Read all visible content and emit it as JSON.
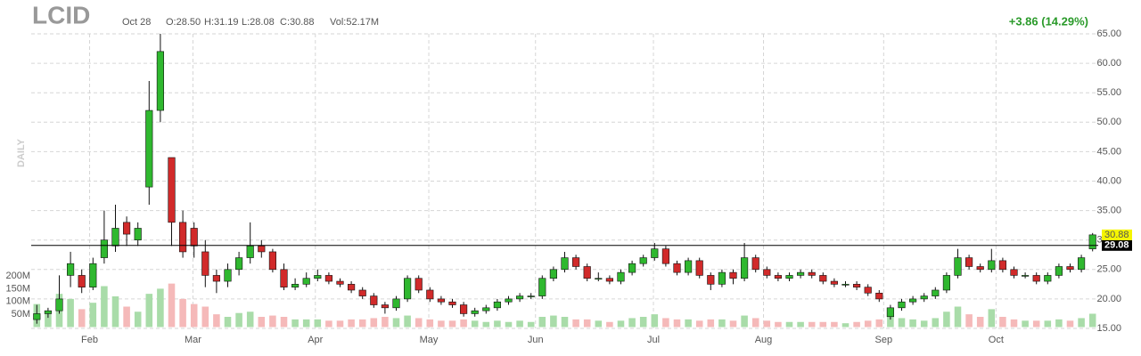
{
  "chart_data": {
    "type": "candlestick",
    "header": {
      "symbol": "LCID",
      "date": "Oct 28",
      "open": "O:28.50",
      "high": "H:31.19",
      "low": "L:28.08",
      "close": "C:30.88",
      "volume": "Vol:52.17M",
      "change": "+3.86 (14.29%)",
      "period": "DAILY"
    },
    "up_color": "#2fb82f",
    "down_color": "#d12a2a",
    "up_volume_color": "#a9dca9",
    "down_volume_color": "#f5b9b9",
    "grid": true,
    "xlim": [
      -0.5,
      94.5
    ],
    "xticks": [
      {
        "value": 4.7,
        "label": "Feb"
      },
      {
        "value": 13.9,
        "label": "Mar"
      },
      {
        "value": 24.8,
        "label": "Apr"
      },
      {
        "value": 34.9,
        "label": "May"
      },
      {
        "value": 44.4,
        "label": "Jun"
      },
      {
        "value": 54.9,
        "label": "Jul"
      },
      {
        "value": 64.7,
        "label": "Aug"
      },
      {
        "value": 75.4,
        "label": "Sep"
      },
      {
        "value": 85.4,
        "label": "Oct"
      }
    ],
    "ylim": [
      15,
      65
    ],
    "yticks": [
      {
        "value": 65,
        "label": "65.00"
      },
      {
        "value": 60,
        "label": "60.00"
      },
      {
        "value": 55,
        "label": "55.00"
      },
      {
        "value": 50,
        "label": "50.00"
      },
      {
        "value": 45,
        "label": "45.00"
      },
      {
        "value": 40,
        "label": "40.00"
      },
      {
        "value": 35,
        "label": "35.00"
      },
      {
        "value": 30,
        "label": "30.00"
      },
      {
        "value": 25,
        "label": "25.00"
      },
      {
        "value": 20,
        "label": "20.00"
      },
      {
        "value": 15,
        "label": "15.00"
      }
    ],
    "volume_lim": [
      0,
      200
    ],
    "volume_ticks": [
      {
        "value": 200,
        "label": "200M"
      },
      {
        "value": 150,
        "label": "150M"
      },
      {
        "value": 100,
        "label": "100M"
      },
      {
        "value": 50,
        "label": "50M"
      }
    ],
    "reference_line": {
      "value": 29.08,
      "label": "29.08"
    },
    "last_price": {
      "value": 30.88,
      "label": "30.88"
    },
    "open": [
      16.5,
      17.5,
      18,
      24,
      24,
      22,
      27,
      29,
      33,
      30,
      39,
      52,
      44,
      33,
      32,
      28,
      24,
      23,
      25,
      27,
      29,
      28,
      25,
      22,
      22.5,
      23.5,
      24,
      23,
      22.5,
      21.5,
      20.5,
      19,
      18.5,
      20,
      23.5,
      21.5,
      20,
      19.5,
      19,
      17.5,
      18,
      18.5,
      19.5,
      20,
      20.5,
      20.5,
      23.5,
      25,
      27,
      25.5,
      23.5,
      23.5,
      23,
      24.5,
      26,
      27,
      28.5,
      26,
      24.5,
      26.5,
      24,
      22.5,
      24.5,
      23.5,
      27,
      25,
      24,
      23.5,
      24,
      24.5,
      24,
      23,
      22.5,
      22.5,
      22,
      21,
      17,
      18.5,
      19.5,
      20,
      20.5,
      21.5,
      24,
      27,
      25.5,
      25,
      26.5,
      25,
      24,
      24,
      23,
      24,
      25.5,
      25,
      28.5
    ],
    "high": [
      19,
      18.5,
      24,
      28,
      25,
      27,
      35,
      36,
      34,
      33,
      57,
      65,
      44,
      35,
      33,
      30,
      25,
      26,
      28,
      33,
      30,
      28.5,
      26,
      23.5,
      24.5,
      25,
      24.5,
      23.5,
      23,
      22,
      21,
      19.5,
      20.5,
      24,
      24,
      22,
      20.5,
      20,
      19.5,
      18.5,
      19,
      20,
      20.5,
      21,
      21,
      24,
      25.5,
      28,
      27.5,
      26,
      24.5,
      24,
      25,
      26.5,
      27.5,
      29.5,
      29,
      26.5,
      27,
      27,
      24.5,
      25,
      25,
      29.5,
      27.5,
      25.5,
      24.5,
      24.5,
      25,
      25,
      24.5,
      23.5,
      23,
      23,
      22.5,
      21.5,
      19,
      20,
      20.5,
      21,
      22,
      24.5,
      28.5,
      27.5,
      26,
      28.5,
      27,
      25.5,
      24.5,
      24.5,
      24.5,
      26,
      26,
      27.5,
      31.19
    ],
    "low": [
      15.8,
      16.8,
      17.5,
      22,
      21,
      21.5,
      26,
      28,
      29,
      29,
      36,
      50,
      29,
      27,
      27,
      22,
      21,
      22,
      24,
      26,
      27,
      24.5,
      21.5,
      21.5,
      22,
      23,
      22.5,
      22,
      21,
      20,
      18.5,
      17.5,
      18,
      19.5,
      21,
      19.5,
      19,
      18.5,
      17,
      17,
      17.5,
      18,
      19,
      19.5,
      20,
      20,
      23,
      24.5,
      25,
      23,
      23,
      22.5,
      22.5,
      24,
      25.5,
      26.5,
      25.5,
      24,
      24,
      23.5,
      21.5,
      22,
      22.5,
      23,
      24.5,
      23.5,
      23,
      23,
      23.5,
      23.5,
      22.5,
      22,
      22,
      21.5,
      20.5,
      19.5,
      16.5,
      18,
      19,
      19.5,
      20,
      21,
      23.5,
      25,
      24.5,
      24.5,
      24.5,
      23.5,
      23.5,
      22.5,
      22.5,
      23.5,
      24.5,
      24.5,
      28.08
    ],
    "close": [
      17.5,
      18,
      20,
      26,
      22,
      26,
      30,
      32,
      31,
      32,
      52,
      62,
      33,
      28,
      29,
      24,
      23,
      25,
      27,
      29,
      28,
      25,
      22,
      22.5,
      23.5,
      24,
      23,
      22.5,
      21.5,
      20.5,
      19,
      18.5,
      20,
      23.5,
      21.5,
      20,
      19.5,
      19,
      17.5,
      18,
      18.5,
      19.5,
      20,
      20.5,
      20.5,
      23.5,
      25,
      27,
      25.5,
      23.5,
      23.5,
      23,
      24.5,
      26,
      27,
      28.5,
      26,
      24.5,
      26.5,
      24,
      22.5,
      24.5,
      23.5,
      27,
      25,
      24,
      23.5,
      24,
      24.5,
      24,
      23,
      22.5,
      22.5,
      22,
      21,
      20,
      18.5,
      19.5,
      20,
      20.5,
      21.5,
      24,
      27,
      25.5,
      25,
      26.5,
      25,
      24,
      24,
      23,
      24,
      25.5,
      25,
      27,
      30.88
    ],
    "volume": [
      90,
      60,
      130,
      110,
      70,
      95,
      160,
      120,
      80,
      60,
      130,
      150,
      170,
      110,
      90,
      80,
      50,
      40,
      55,
      60,
      40,
      45,
      40,
      30,
      30,
      30,
      25,
      25,
      30,
      30,
      35,
      40,
      35,
      45,
      35,
      30,
      25,
      25,
      30,
      25,
      20,
      25,
      20,
      25,
      20,
      40,
      45,
      40,
      30,
      30,
      25,
      20,
      25,
      35,
      40,
      50,
      35,
      30,
      30,
      25,
      30,
      30,
      25,
      45,
      35,
      25,
      20,
      20,
      20,
      20,
      20,
      20,
      15,
      20,
      25,
      30,
      60,
      35,
      30,
      25,
      35,
      60,
      80,
      50,
      40,
      70,
      40,
      30,
      25,
      25,
      25,
      30,
      25,
      35,
      52.17
    ]
  }
}
